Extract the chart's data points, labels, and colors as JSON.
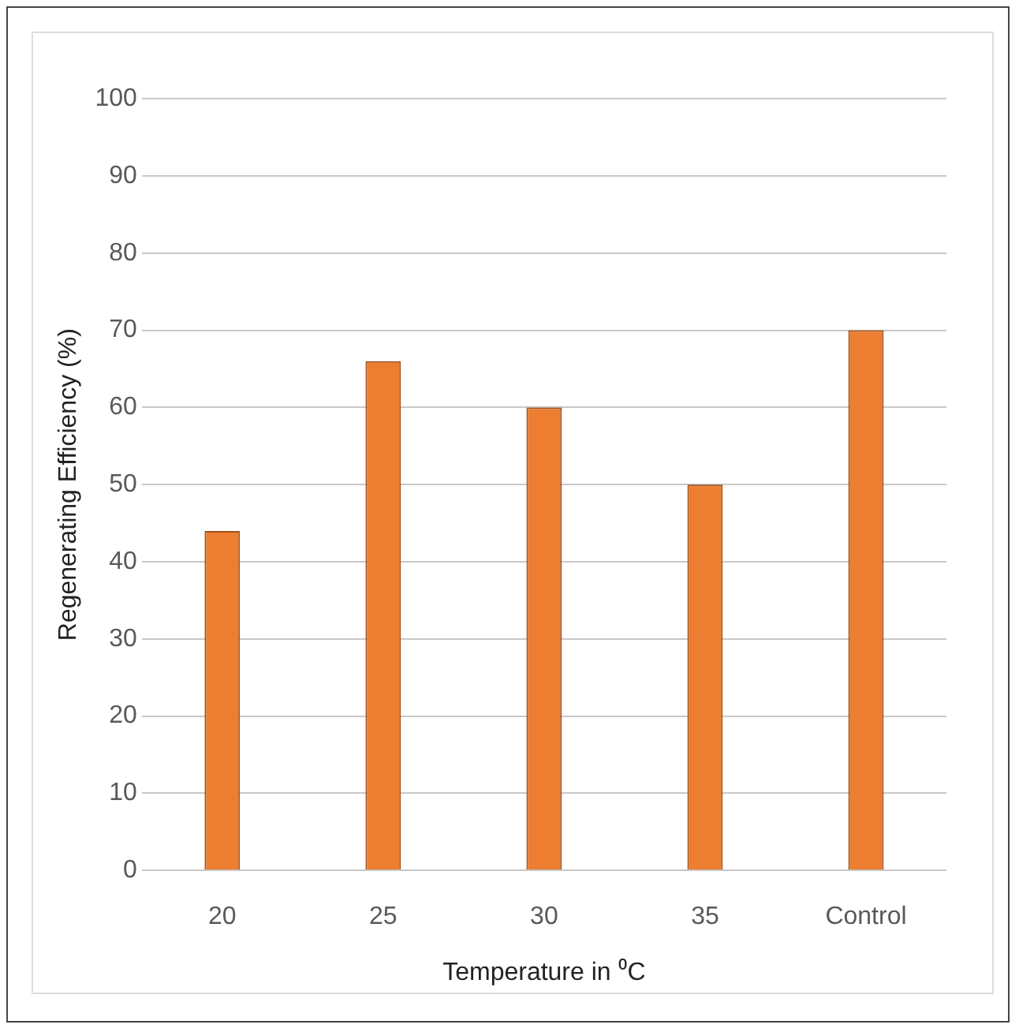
{
  "chart_data": {
    "type": "bar",
    "categories": [
      "20",
      "25",
      "30",
      "35",
      "Control"
    ],
    "values": [
      44,
      66,
      60,
      50,
      70
    ],
    "color": "#ed7d31",
    "xlabel": "Temperature in ⁰C",
    "ylabel": "Regenerating Efficiency (%)",
    "ylim": [
      0,
      100
    ],
    "yticks": [
      0,
      10,
      20,
      30,
      40,
      50,
      60,
      70,
      80,
      90,
      100
    ],
    "grid": "y",
    "legend": false
  }
}
